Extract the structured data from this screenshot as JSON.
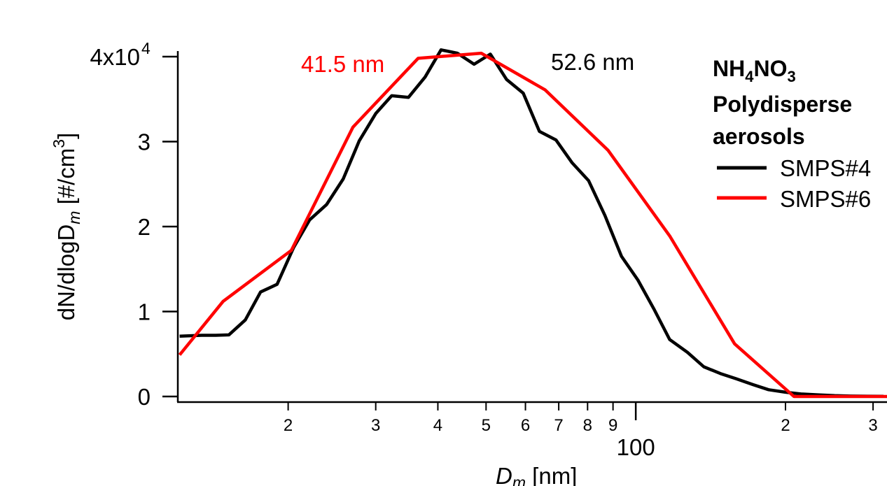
{
  "chart_data": {
    "type": "line",
    "x_scale": "log",
    "xlim": [
      12,
      320
    ],
    "ylim": [
      0,
      40000
    ],
    "grid": false,
    "legend_placement": "top-right",
    "xlabel": "D",
    "xlabel_sub": "m",
    "xlabel_unit": " [nm]",
    "ylabel": "dN/dlogD",
    "ylabel_sub": "m",
    "ylabel_unit": " [#/cm",
    "ylabel_sup": "3",
    "ylabel_close": "]",
    "y_ticks": [
      {
        "value": 0,
        "label": "0"
      },
      {
        "value": 10000,
        "label": "1"
      },
      {
        "value": 20000,
        "label": "2"
      },
      {
        "value": 30000,
        "label": "3"
      },
      {
        "value": 40000,
        "label": "4x10",
        "sup": "4"
      }
    ],
    "x_major_ticks": [
      {
        "value": 100,
        "label": "100"
      }
    ],
    "x_minor_ticks": [
      {
        "value": 20,
        "label": "2"
      },
      {
        "value": 30,
        "label": "3"
      },
      {
        "value": 40,
        "label": "4"
      },
      {
        "value": 50,
        "label": "5"
      },
      {
        "value": 60,
        "label": "6"
      },
      {
        "value": 70,
        "label": "7"
      },
      {
        "value": 80,
        "label": "8"
      },
      {
        "value": 90,
        "label": "9"
      },
      {
        "value": 200,
        "label": "2"
      },
      {
        "value": 300,
        "label": "3"
      }
    ],
    "series": [
      {
        "name": "SMPS#4",
        "color": "#000000",
        "x": [
          12.1,
          13.4,
          14.3,
          15.2,
          16.4,
          17.6,
          19.0,
          20.5,
          22.1,
          23.9,
          25.8,
          27.8,
          30.0,
          32.3,
          34.9,
          37.7,
          40.6,
          43.8,
          47.3,
          51.0,
          55.0,
          59.4,
          64.0,
          69.1,
          74.5,
          80.4,
          86.7,
          93.6,
          101,
          109,
          117,
          127,
          137,
          148,
          159,
          172,
          185,
          200,
          215,
          232,
          251,
          270,
          292,
          315
        ],
        "y": [
          7100,
          7200,
          7200,
          7250,
          9000,
          12300,
          13200,
          17500,
          20800,
          22600,
          25600,
          30100,
          33300,
          35400,
          35200,
          37600,
          40800,
          40400,
          39100,
          40300,
          37300,
          35700,
          31200,
          30200,
          27500,
          25400,
          21300,
          16500,
          13700,
          10200,
          6700,
          5200,
          3500,
          2700,
          2100,
          1400,
          800,
          500,
          300,
          200,
          100,
          50,
          30,
          20
        ]
      },
      {
        "name": "SMPS#6",
        "color": "#ff0000",
        "x": [
          12.1,
          14.8,
          20.3,
          27.0,
          36.5,
          48.9,
          65.7,
          87.9,
          117,
          158,
          208,
          280,
          320
        ],
        "y": [
          4900,
          11200,
          17200,
          31700,
          39800,
          40400,
          36100,
          29000,
          18900,
          6200,
          0,
          0,
          0
        ]
      }
    ],
    "annotations": [
      {
        "text": "41.5 nm",
        "color": "#ff0000"
      },
      {
        "text": "52.6 nm",
        "color": "#000000"
      }
    ],
    "legend_title_lines": [
      "NH",
      "Polydisperse",
      "aerosols"
    ],
    "legend_formula": {
      "n": "4",
      "no": "NO",
      "three": "3"
    }
  }
}
